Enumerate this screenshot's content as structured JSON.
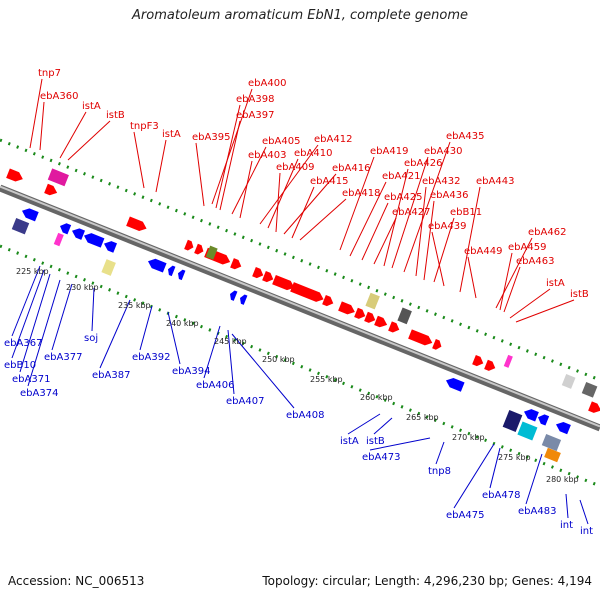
{
  "title": "Aromatoleum aromaticum EbN1, complete genome",
  "footer": {
    "accession": "Accession: NC_006513",
    "topology": "Topology: circular; Length: 4,296,230 bp; Genes: 4,194"
  },
  "colors": {
    "forward": "#ff0000",
    "reverse": "#0000ff",
    "backbone": "#808080",
    "dots": "#1a8a1a"
  },
  "tick_labels": [
    "225 kbp",
    "230 kbp",
    "235 kbp",
    "240 kbp",
    "245 kbp",
    "250 kbp",
    "255 kbp",
    "260 kbp",
    "265 kbp",
    "270 kbp",
    "275 kbp",
    "280 kbp"
  ],
  "top_labels": [
    "tnp7",
    "ebA360",
    "istA",
    "istB",
    "tnpF3",
    "istA",
    "ebA395",
    "ebA400",
    "ebA398",
    "ebA397",
    "ebA405",
    "ebA403",
    "ebA412",
    "ebA410",
    "ebA409",
    "ebA416",
    "ebA415",
    "ebA418",
    "ebA419",
    "ebA421",
    "ebA425",
    "ebA427",
    "ebA426",
    "ebA430",
    "ebA435",
    "ebA432",
    "ebA436",
    "ebB11",
    "ebA439",
    "ebA443",
    "ebA449",
    "ebA462",
    "ebA459",
    "ebA463",
    "istA",
    "istB"
  ],
  "bottom_labels": [
    "ebA367",
    "ebB10",
    "ebA371",
    "ebA374",
    "ebA377",
    "soj",
    "ebA387",
    "ebA392",
    "ebA394",
    "ebA406",
    "ebA407",
    "ebA408",
    "istA",
    "istB",
    "ebA473",
    "tnp8",
    "ebA475",
    "ebA478",
    "ebA483",
    "int",
    "int"
  ]
}
